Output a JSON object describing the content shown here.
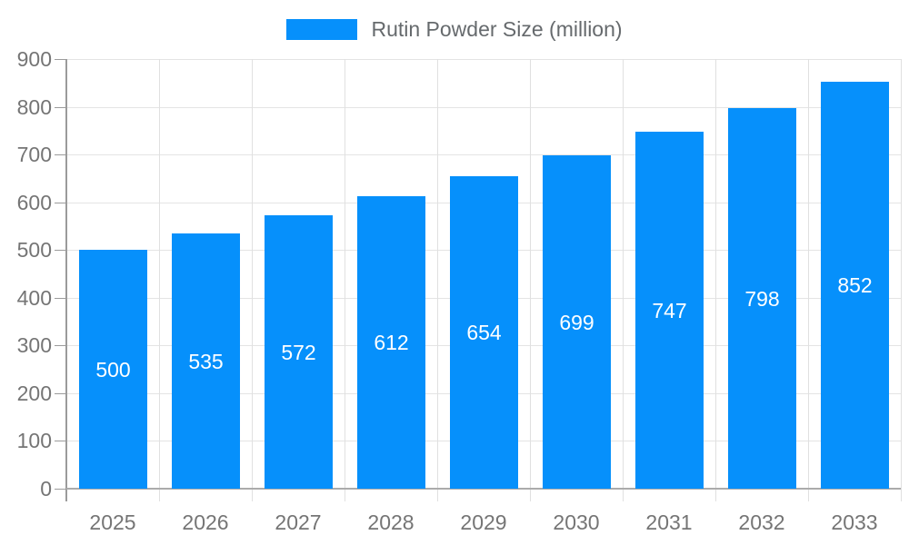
{
  "legend": {
    "label": "Rutin Powder Size (million)",
    "position": "top"
  },
  "colors": {
    "bar": "#0690fb",
    "bar_label": "#ffffff",
    "axis_line": "#9b9b9b",
    "baseline": "#ababab",
    "gridline": "#e4e4e4",
    "tick_label": "#757575",
    "legend_text": "#666a6d",
    "background": "#ffffff"
  },
  "chart_data": {
    "type": "bar",
    "title": "",
    "legend_entries": [
      "Rutin Powder Size (million)"
    ],
    "legend_position": "top",
    "categories": [
      "2025",
      "2026",
      "2027",
      "2028",
      "2029",
      "2030",
      "2031",
      "2032",
      "2033"
    ],
    "series": [
      {
        "name": "Rutin Powder Size (million)",
        "values": [
          500,
          535,
          572,
          612,
          654,
          699,
          747,
          798,
          852
        ]
      }
    ],
    "bar_labels": [
      "500",
      "535",
      "572",
      "612",
      "654",
      "699",
      "747",
      "798",
      "852"
    ],
    "xlabel": "",
    "ylabel": "",
    "ylim": [
      0,
      900
    ],
    "ytick_step": 100,
    "ytick_labels": [
      "0",
      "100",
      "200",
      "300",
      "400",
      "500",
      "600",
      "700",
      "800",
      "900"
    ],
    "grid": true
  }
}
